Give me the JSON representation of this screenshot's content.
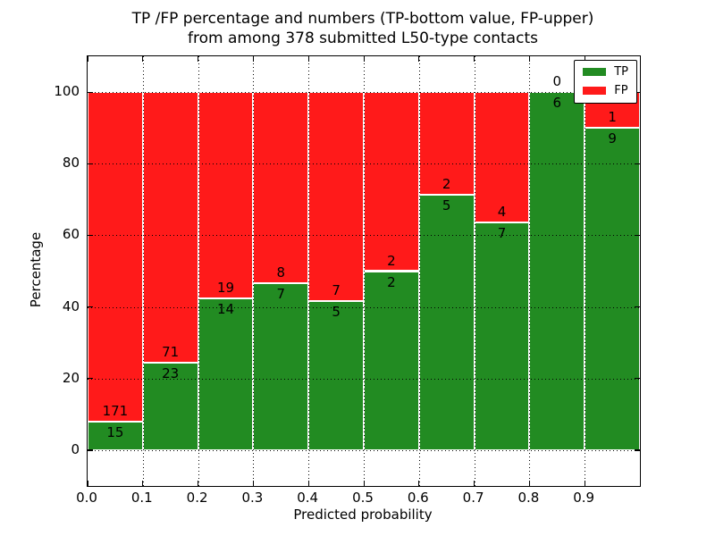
{
  "chart_data": {
    "type": "bar",
    "stacked": true,
    "normalized": "percent",
    "title_line1": "TP /FP percentage and numbers (TP-bottom value, FP-upper)",
    "title_line2": "from among 378 submitted L50-type contacts",
    "xlabel": "Predicted probability",
    "ylabel": "Percentage",
    "total_contacts": 378,
    "bins": [
      "0.0-0.1",
      "0.1-0.2",
      "0.2-0.3",
      "0.3-0.4",
      "0.4-0.5",
      "0.5-0.6",
      "0.6-0.7",
      "0.7-0.8",
      "0.8-0.9",
      "0.9-1.0"
    ],
    "series": [
      {
        "name": "TP",
        "color": "#228b22",
        "counts": [
          15,
          23,
          14,
          7,
          5,
          2,
          5,
          7,
          6,
          9
        ]
      },
      {
        "name": "FP",
        "color": "#ff1a1a",
        "counts": [
          171,
          71,
          19,
          8,
          7,
          2,
          2,
          4,
          0,
          1
        ]
      }
    ],
    "tp_percent_heights": [
      8.1,
      24.5,
      42.4,
      46.7,
      41.7,
      50.0,
      71.4,
      63.6,
      100.0,
      90.0
    ],
    "xticks": [
      "0.0",
      "0.1",
      "0.2",
      "0.3",
      "0.4",
      "0.5",
      "0.6",
      "0.7",
      "0.8",
      "0.9"
    ],
    "yticks": [
      "0",
      "20",
      "40",
      "60",
      "80",
      "100"
    ],
    "xlim": [
      0.0,
      1.0
    ],
    "ylim": [
      -10,
      110
    ],
    "grid": "dotted",
    "legend_position": "upper right"
  }
}
